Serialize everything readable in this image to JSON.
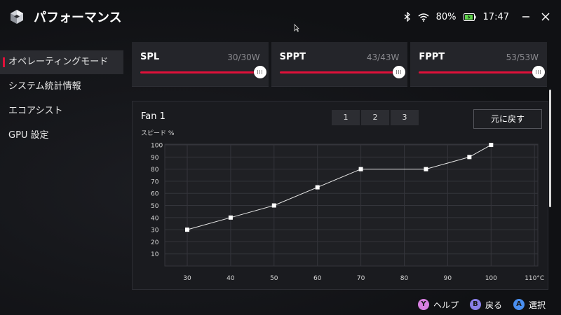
{
  "header": {
    "title": "パフォーマンス"
  },
  "status": {
    "battery": "80%",
    "time": "17:47"
  },
  "sidebar": {
    "items": [
      {
        "label": "オペレーティングモード",
        "active": true
      },
      {
        "label": "システム統計情報",
        "active": false
      },
      {
        "label": "エコアシスト",
        "active": false
      },
      {
        "label": "GPU 設定",
        "active": false
      }
    ]
  },
  "power": {
    "spl": {
      "name": "SPL",
      "value": "30/30W",
      "level": 1.0
    },
    "sppt": {
      "name": "SPPT",
      "value": "43/43W",
      "level": 1.0
    },
    "fppt": {
      "name": "FPPT",
      "value": "53/53W",
      "level": 1.0
    }
  },
  "fan": {
    "title": "Fan 1",
    "tabs": [
      "1",
      "2",
      "3"
    ],
    "reset_label": "元に戻す"
  },
  "chart_data": {
    "type": "line",
    "ylabel": "スピード %",
    "x_ticks": [
      "30",
      "40",
      "50",
      "60",
      "70",
      "80",
      "90",
      "100",
      "110°C"
    ],
    "y_ticks": [
      "100",
      "90",
      "80",
      "70",
      "60",
      "50",
      "40",
      "30",
      "20",
      "10"
    ],
    "x": [
      30,
      40,
      50,
      60,
      70,
      85,
      95,
      100
    ],
    "y": [
      30,
      40,
      50,
      65,
      80,
      80,
      90,
      100
    ],
    "xlim": [
      30,
      110
    ],
    "ylim": [
      0,
      100
    ],
    "grid": true
  },
  "footer": {
    "help": {
      "key": "Y",
      "label": "ヘルプ",
      "color": "#d77fe0"
    },
    "back": {
      "key": "B",
      "label": "戻る",
      "color": "#8a80e8"
    },
    "select": {
      "key": "A",
      "label": "選択",
      "color": "#4a8ff0"
    }
  }
}
